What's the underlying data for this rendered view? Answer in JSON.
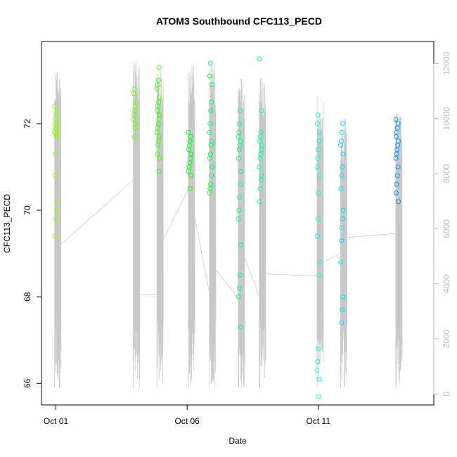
{
  "chart_data": {
    "type": "scatter",
    "title": "ATOM3 Southbound CFC113_PECD",
    "xlabel": "Date",
    "ylabel": "CFC113_PECD",
    "x_ticks": [
      {
        "day": 1,
        "label": "Oct 01"
      },
      {
        "day": 6,
        "label": "Oct 06"
      },
      {
        "day": 11,
        "label": "Oct 11"
      }
    ],
    "y_ticks": [
      66,
      68,
      70,
      72
    ],
    "y_range": [
      65.5,
      73.9
    ],
    "x_range": [
      0.45,
      15.4
    ],
    "y2_ticks": [
      0,
      2000,
      4000,
      6000,
      8000,
      10000,
      12000
    ],
    "y2_range": [
      -400,
      12800
    ],
    "y2_axis_color": "#bdbdbd",
    "altitude_color": "#c8c8c8",
    "grid": false,
    "clusters": [
      {
        "day": 1.0,
        "color": "#8cff00",
        "values": [
          72.4,
          72.3,
          72.2,
          72.1,
          72.0,
          72.0,
          71.9,
          71.9,
          71.8,
          71.8,
          71.7,
          71.7,
          71.3,
          70.8,
          70.2,
          70.0,
          69.8,
          69.4
        ]
      },
      {
        "day": 4.0,
        "color": "#66ff00",
        "values": [
          72.8,
          72.7,
          72.5,
          72.4,
          72.3,
          72.2,
          72.1,
          72.0,
          71.9,
          71.7
        ]
      },
      {
        "day": 4.9,
        "color": "#33ff00",
        "values": [
          73.3,
          73.0,
          72.9,
          72.8,
          72.6,
          72.5,
          72.4,
          72.3,
          72.2,
          72.1,
          72.0,
          71.9,
          71.8,
          71.7,
          71.6,
          71.5,
          71.3,
          71.2,
          70.9
        ]
      },
      {
        "day": 6.1,
        "color": "#00ff1a",
        "values": [
          71.8,
          71.7,
          71.6,
          71.5,
          71.4,
          71.3,
          71.2,
          71.1,
          71.0,
          70.9,
          70.8,
          70.5
        ]
      },
      {
        "day": 6.9,
        "color": "#00ff4d",
        "values": [
          73.4,
          73.1,
          72.9,
          72.5,
          72.3,
          72.0,
          71.8,
          71.6,
          71.5,
          71.3,
          71.2,
          71.0,
          70.8,
          70.6,
          70.5,
          70.4
        ]
      },
      {
        "day": 8.0,
        "color": "#00ff80",
        "values": [
          72.3,
          72.0,
          71.8,
          71.7,
          71.6,
          71.5,
          71.4,
          71.2,
          70.9,
          70.6,
          70.3,
          70.0,
          69.8,
          69.2,
          68.5,
          68.2,
          68.0,
          67.3
        ]
      },
      {
        "day": 8.8,
        "color": "#00ffb0",
        "values": [
          73.5,
          72.3,
          71.8,
          71.7,
          71.6,
          71.5,
          71.4,
          71.3,
          71.2,
          71.0,
          70.8,
          70.7,
          70.5,
          70.2
        ]
      },
      {
        "day": 11.0,
        "color": "#00ffe6",
        "values": [
          72.2,
          72.0,
          71.8,
          71.6,
          71.4,
          71.2,
          71.0,
          70.8,
          70.4,
          69.8,
          69.4,
          68.8,
          68.5,
          66.8,
          66.5,
          66.3,
          66.1,
          65.7
        ]
      },
      {
        "day": 11.9,
        "color": "#00e0ff",
        "values": [
          72.0,
          71.8,
          71.6,
          71.5,
          71.3,
          71.0,
          70.8,
          70.5,
          70.0,
          69.8,
          69.6,
          69.3,
          68.8,
          68.0,
          67.7,
          67.4
        ]
      },
      {
        "day": 14.0,
        "color": "#0090ff",
        "values": [
          72.1,
          72.0,
          71.9,
          71.8,
          71.7,
          71.6,
          71.5,
          71.4,
          71.3,
          71.2,
          71.0,
          70.8,
          70.6,
          70.4,
          70.2
        ]
      }
    ]
  }
}
